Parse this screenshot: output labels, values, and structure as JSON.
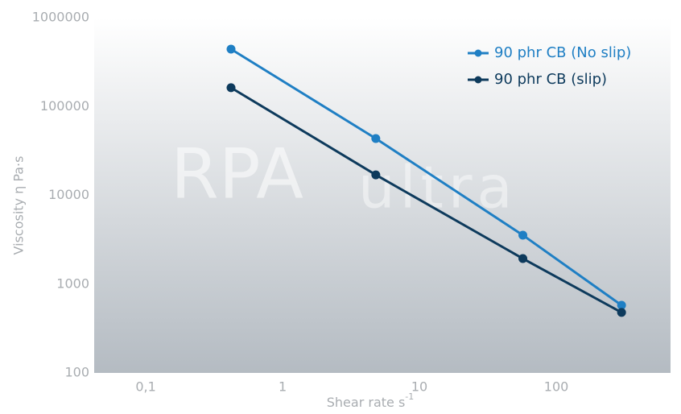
{
  "chart_data": {
    "type": "line",
    "x_label": "Shear rate s",
    "x_label_superscript": "-1",
    "y_label": "Viscosity η Pa·s",
    "watermark": [
      "RPA",
      "ultra"
    ],
    "x": [
      0.42,
      4.8,
      57,
      300
    ],
    "series": [
      {
        "name": "90 phr CB (No slip)",
        "color": "#1f7fc4",
        "values": [
          443000,
          43600,
          3560,
          578
        ]
      },
      {
        "name": "90 phr CB (slip)",
        "color": "#0d3a5c",
        "values": [
          163000,
          17000,
          1940,
          480
        ]
      }
    ],
    "xlim": [
      0.042,
      684
    ],
    "x_log": true,
    "xticks": [
      {
        "value": 0.1,
        "label": "0,1"
      },
      1,
      10,
      100
    ],
    "ylim": [
      100,
      1000000
    ],
    "y_log": true,
    "yticks": [
      100,
      1000,
      10000,
      100000,
      1000000
    ],
    "legend": "upper right"
  }
}
